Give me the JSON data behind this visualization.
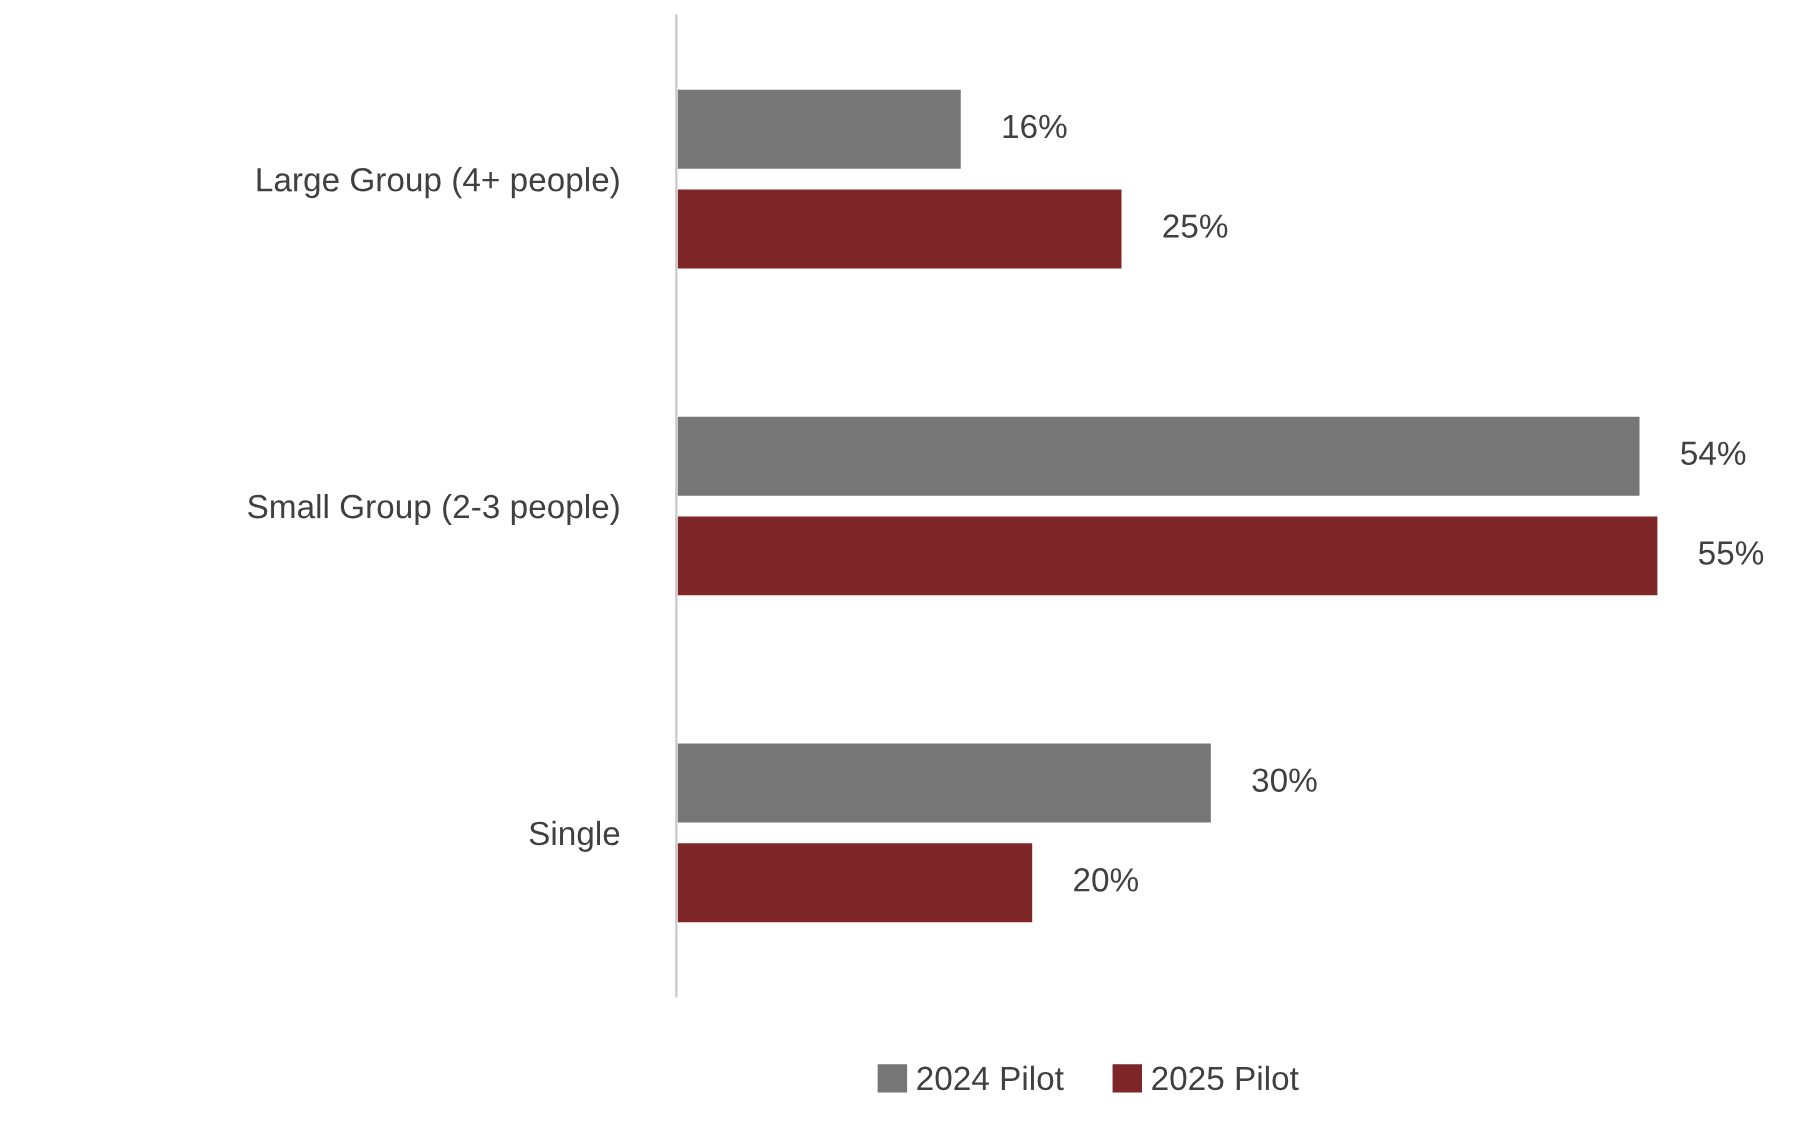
{
  "chart_data": {
    "type": "bar",
    "orientation": "horizontal",
    "categories": [
      "Large Group (4+ people)",
      "Small Group (2-3 people)",
      "Single"
    ],
    "series": [
      {
        "name": "2024 Pilot",
        "color": "#767676",
        "values": [
          16,
          54,
          30
        ],
        "value_labels": [
          "16%",
          "54%",
          "30%"
        ]
      },
      {
        "name": "2025 Pilot",
        "color": "#7f2629",
        "values": [
          25,
          55,
          20
        ],
        "value_labels": [
          "25%",
          "55%",
          "20%"
        ]
      }
    ],
    "tick_labels": "y",
    "grid": false,
    "legend": "bottom"
  }
}
